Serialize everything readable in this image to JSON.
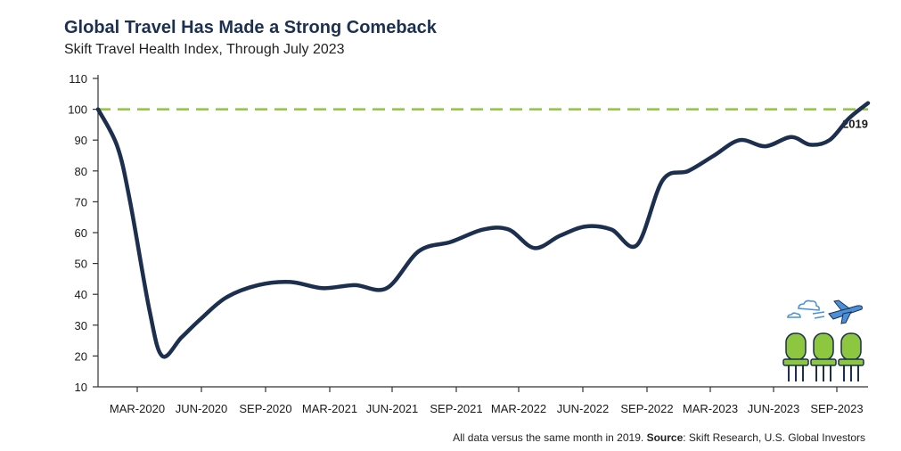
{
  "title": "Global Travel Has Made a Strong Comeback",
  "subtitle": "Skift Travel Health Index, Through July 2023",
  "footer": {
    "note": "All data versus the same month in 2019.",
    "source_label": "Source",
    "source_text": ": Skift Research, U.S. Global Investors"
  },
  "icon": "travel-seats-airplane-icon",
  "colors": {
    "line": "#1c2f4e",
    "reference": "#8dc63f",
    "seat": "#8dc63f",
    "plane": "#4a90d9"
  },
  "chart_data": {
    "type": "line",
    "title": "Global Travel Has Made a Strong Comeback",
    "subtitle": "Skift Travel Health Index, Through July 2023",
    "xlabel": "",
    "ylabel": "",
    "ylim": [
      10,
      110
    ],
    "yticks": [
      10,
      20,
      30,
      40,
      50,
      60,
      70,
      80,
      90,
      100,
      110
    ],
    "xtick_labels": [
      "MAR-2020",
      "JUN-2020",
      "SEP-2020",
      "MAR-2021",
      "JUN-2021",
      "SEP-2021",
      "MAR-2022",
      "JUN-2022",
      "SEP-2022",
      "MAR-2023",
      "JUN-2023",
      "SEP-2023"
    ],
    "reference_line": {
      "value": 100,
      "label": "2019"
    },
    "series": [
      {
        "x": [
          0,
          0.3,
          0.5,
          0.8,
          1.0,
          1.3,
          1.6,
          2.0,
          2.5,
          3.0,
          3.5,
          4.0,
          4.5,
          5.0,
          5.5,
          6.0,
          6.4,
          6.8,
          7.2,
          7.6,
          8.0,
          8.4,
          8.8,
          9.2,
          9.6,
          10.0,
          10.4,
          10.8,
          11.1,
          11.4,
          11.7,
          12.0
        ],
        "y": [
          100,
          88,
          70,
          35,
          20,
          26,
          32,
          39,
          43,
          44,
          42,
          43,
          42,
          54,
          57,
          61,
          61,
          55,
          59,
          62,
          61,
          56,
          77,
          80,
          85,
          90,
          88,
          91,
          88.5,
          90,
          97,
          102
        ]
      }
    ]
  }
}
